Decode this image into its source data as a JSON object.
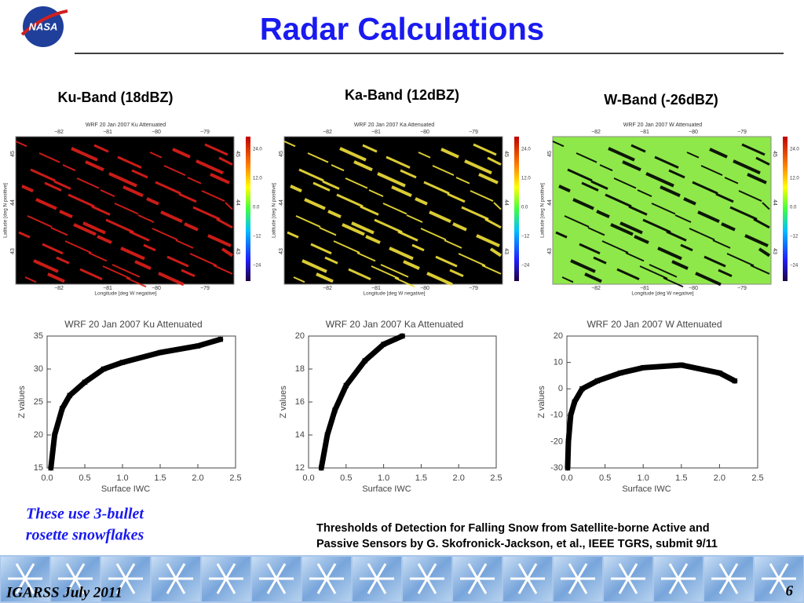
{
  "logo": "NASA",
  "title": "Radar Calculations",
  "bands": [
    {
      "label": "Ku-Band (18dBZ)",
      "map_title": "WRF 20 Jan 2007 Ku Attenuated",
      "color": "#e0201a"
    },
    {
      "label": "Ka-Band (12dBZ)",
      "map_title": "WRF 20 Jan 2007 Ka Attenuated",
      "color": "#f2e33a"
    },
    {
      "label": "W-Band (-26dBZ)",
      "map_title": "WRF 20 Jan 2007 W Attenuated",
      "color": "#8fe84a"
    }
  ],
  "map_axes": {
    "x_label": "Longitude [deg W negative]",
    "y_label": "Latitude [deg N positive]",
    "xticks": [
      "−82",
      "−81",
      "−80",
      "−79"
    ],
    "yticks": [
      "43",
      "44",
      "45"
    ],
    "colorbar_ticks": [
      "24.0",
      "12.0",
      "0.0",
      "−12",
      "−24"
    ]
  },
  "chart_data": [
    {
      "type": "scatter",
      "title": "WRF 20 Jan 2007 Ku Attenuated",
      "x_label": "Surface IWC",
      "y_label": "Z values",
      "x": [
        0.05,
        0.1,
        0.2,
        0.3,
        0.5,
        0.75,
        1.0,
        1.5,
        2.0,
        2.3
      ],
      "values": [
        15,
        20,
        24,
        26,
        28,
        30,
        31,
        32.5,
        33.5,
        34.5
      ],
      "color": "#000000",
      "xlim": [
        0,
        2.5
      ],
      "xticks": [
        {
          "value": 0,
          "label": "0.0"
        },
        0.5,
        {
          "value": 1,
          "label": "1.0"
        },
        1.5,
        {
          "value": 2,
          "label": "2.0"
        },
        2.5
      ],
      "ylim": [
        15,
        35
      ],
      "yticks": [
        15,
        20,
        25,
        30,
        35
      ]
    },
    {
      "type": "scatter",
      "title": "WRF 20 Jan 2007 Ka Attenuated",
      "x_label": "Surface IWC",
      "y_label": "Z values",
      "x": [
        0.17,
        0.25,
        0.35,
        0.5,
        0.75,
        1.0,
        1.25
      ],
      "values": [
        12,
        14,
        15.5,
        17,
        18.5,
        19.5,
        20
      ],
      "color": "#000000",
      "xlim": [
        0,
        2.5
      ],
      "xticks": [
        {
          "value": 0,
          "label": "0.0"
        },
        0.5,
        {
          "value": 1,
          "label": "1.0"
        },
        1.5,
        {
          "value": 2,
          "label": "2.0"
        },
        2.5
      ],
      "ylim": [
        12,
        20
      ],
      "yticks": [
        12,
        14,
        16,
        18,
        20
      ]
    },
    {
      "type": "scatter",
      "title": "WRF 20 Jan 2007 W Attenuated",
      "x_label": "Surface IWC",
      "y_label": "Z values",
      "x": [
        0.01,
        0.02,
        0.05,
        0.1,
        0.2,
        0.4,
        0.7,
        1.0,
        1.5,
        2.0,
        2.2
      ],
      "values": [
        -30,
        -20,
        -10,
        -5,
        0,
        3,
        6,
        8,
        9,
        6,
        3
      ],
      "color": "#000000",
      "xlim": [
        0,
        2.5
      ],
      "xticks": [
        {
          "value": 0,
          "label": "0.0"
        },
        0.5,
        {
          "value": 1,
          "label": "1.0"
        },
        1.5,
        {
          "value": 2,
          "label": "2.0"
        },
        2.5
      ],
      "ylim": [
        -30,
        20
      ],
      "yticks": [
        -30,
        -20,
        -10,
        0,
        10,
        20
      ]
    }
  ],
  "note": [
    "These use 3-bullet",
    "rosette snowflakes"
  ],
  "citation": [
    "Thresholds of Detection for Falling Snow from Satellite-borne Active and",
    "Passive Sensors by G. Skofronick-Jackson, et al., IEEE TGRS, submit 9/11"
  ],
  "footer": {
    "event": "IGARSS July 2011",
    "page": "6"
  }
}
